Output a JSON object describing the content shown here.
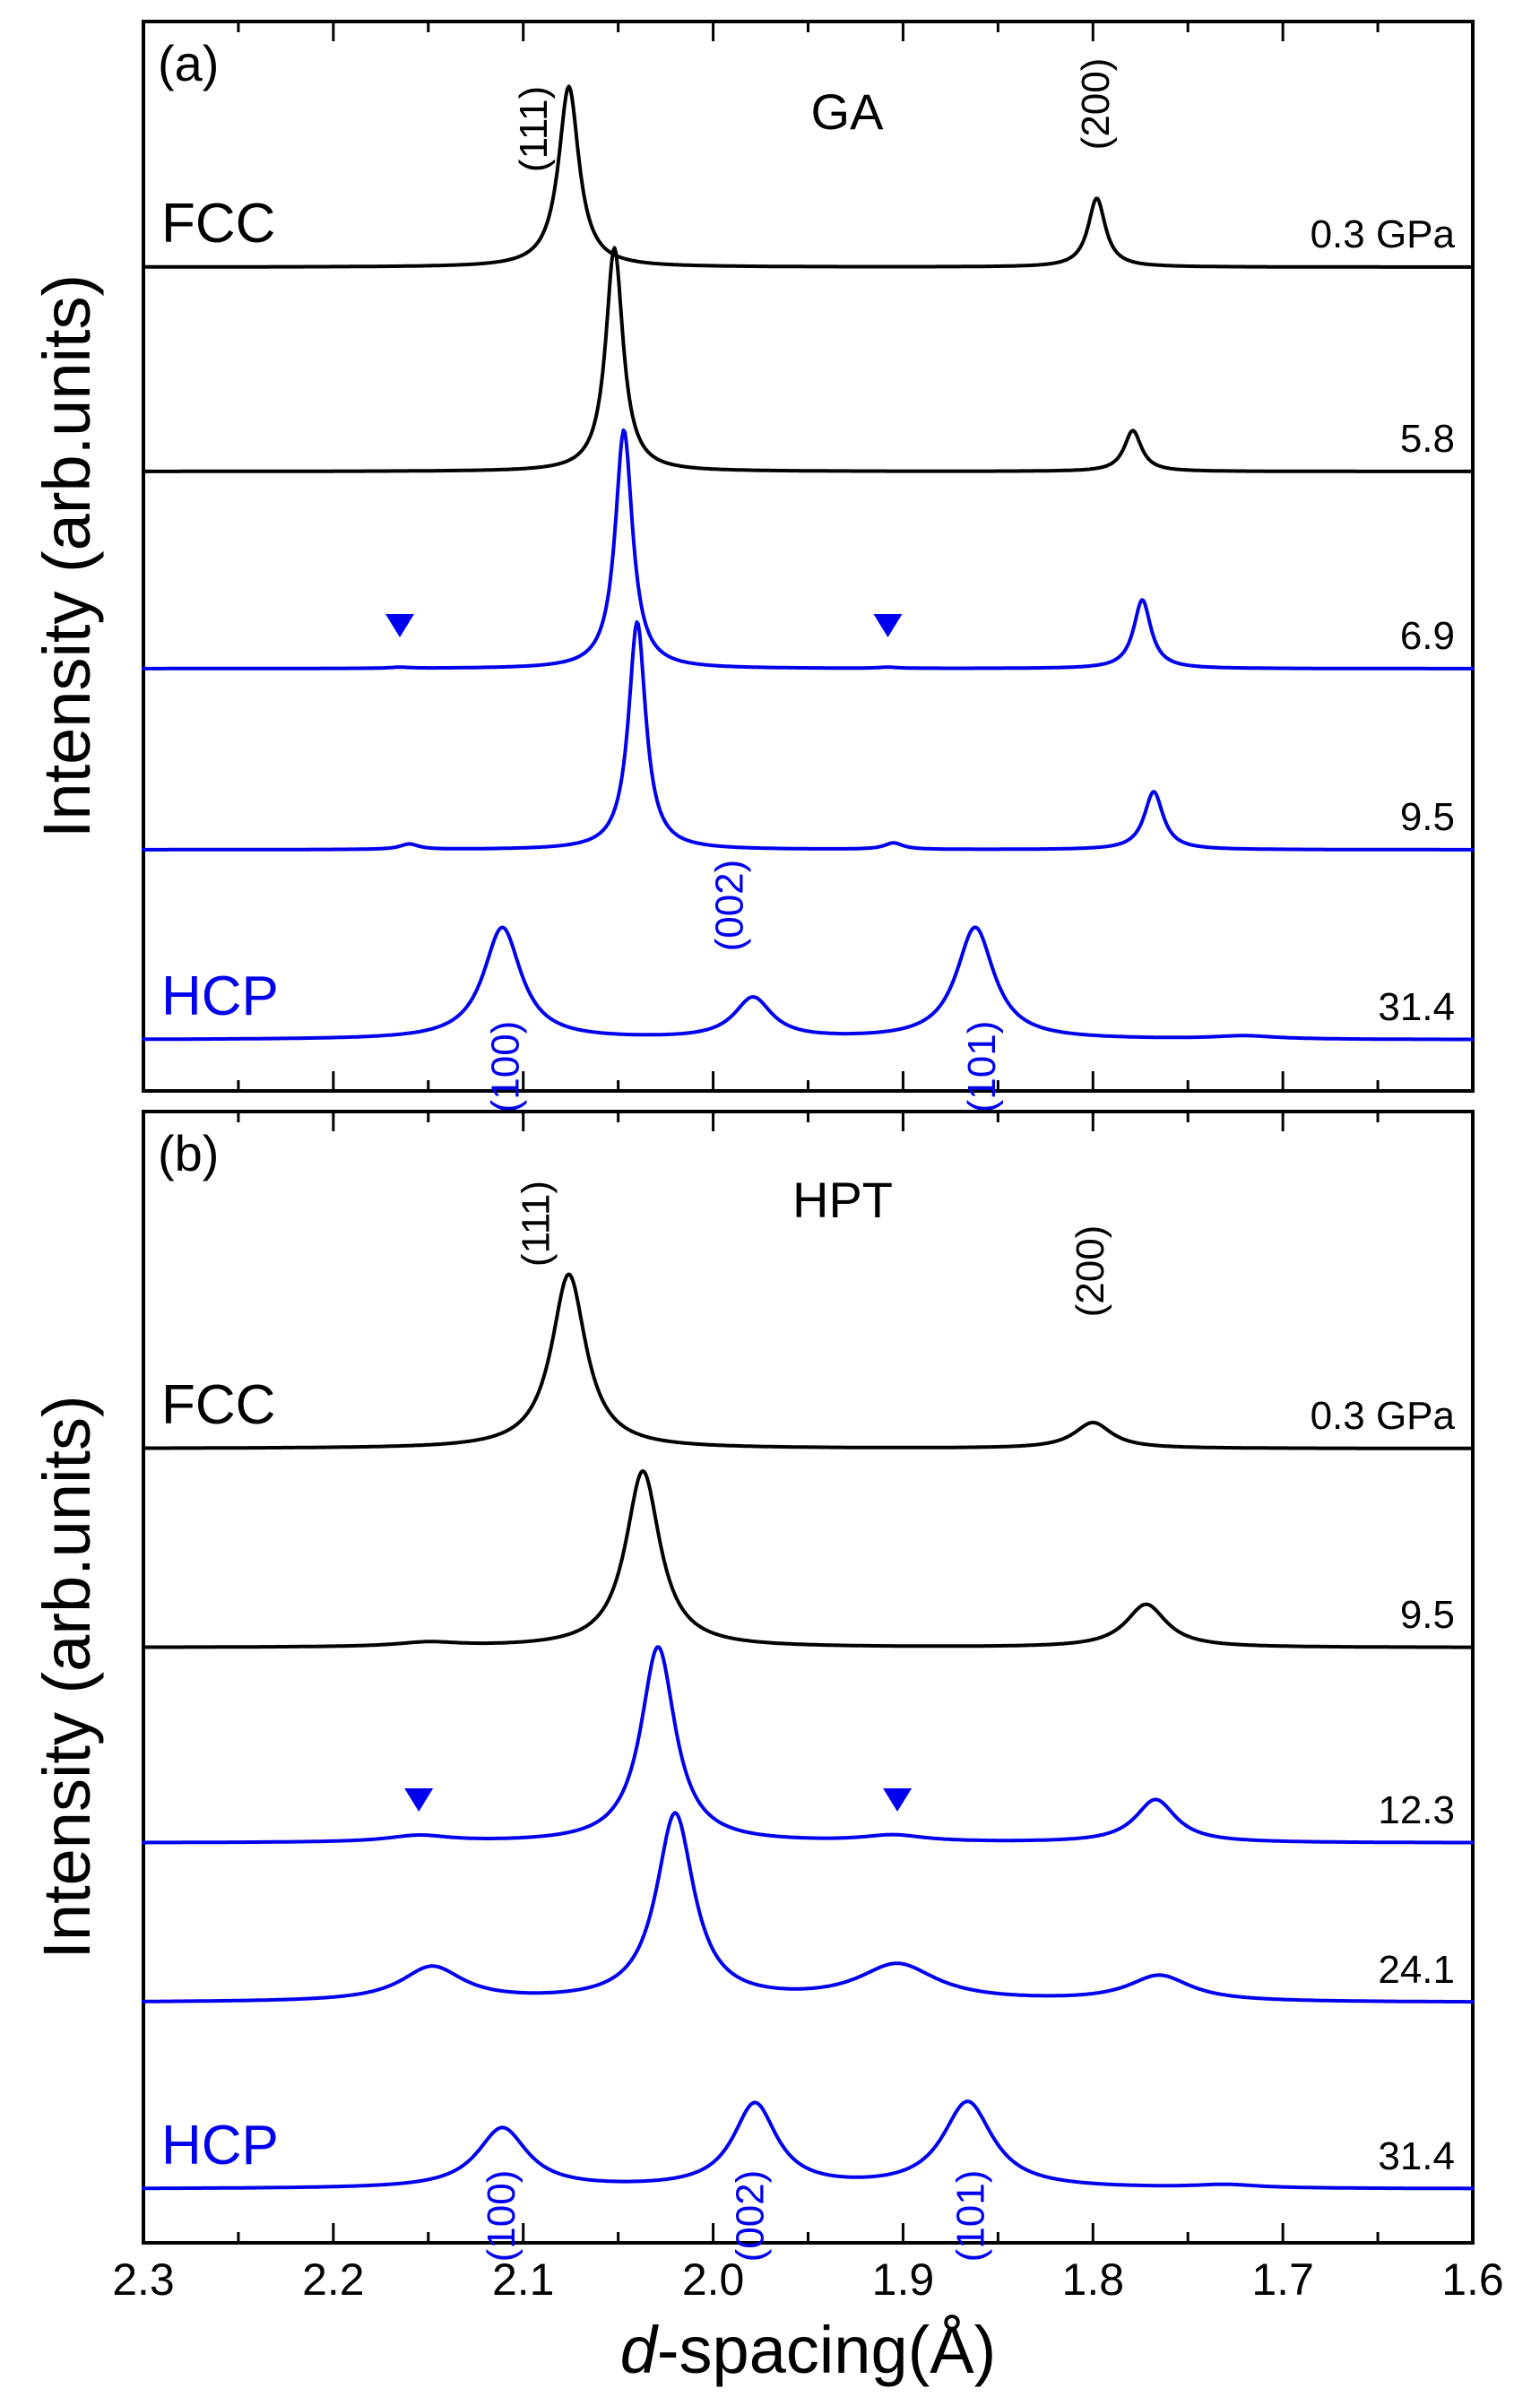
{
  "chart_data": [
    {
      "type": "line",
      "panel_label": "(a)",
      "sample": "GA",
      "xlabel_italic": "d",
      "xlabel_rest": "-spacing(Å)",
      "ylabel": "Intensity (arb.units)",
      "xlim": [
        2.3,
        1.6
      ],
      "x_ticks": [
        "2.3",
        "2.2",
        "2.1",
        "2.0",
        "1.9",
        "1.8",
        "1.7",
        "1.6"
      ],
      "phase_labels": [
        {
          "text": "FCC",
          "color": "#000000",
          "series": 0
        },
        {
          "text": "HCP",
          "color": "#0000ee",
          "series": 4
        }
      ],
      "peak_labels": [
        {
          "text": "(111)",
          "x": 2.093,
          "series": 0,
          "color": "#000000",
          "pos": "above"
        },
        {
          "text": "(200)",
          "x": 1.797,
          "series": 0,
          "color": "#000000",
          "pos": "above"
        },
        {
          "text": "(100)",
          "x": 2.108,
          "series": 4,
          "color": "#0000ee",
          "pos": "below"
        },
        {
          "text": "(002)",
          "x": 1.99,
          "series": 4,
          "color": "#0000ee",
          "pos": "above"
        },
        {
          "text": "(101)",
          "x": 1.857,
          "series": 4,
          "color": "#0000ee",
          "pos": "below"
        }
      ],
      "markers": [
        {
          "x": 2.165,
          "series": 2,
          "color": "#0000ee"
        },
        {
          "x": 1.908,
          "series": 2,
          "color": "#0000ee"
        }
      ],
      "series": [
        {
          "name": "0.3 GPa",
          "color": "#000000",
          "baseline": 0.0,
          "slope": 0.0,
          "peaks": [
            {
              "x": 2.076,
              "h": 8.4,
              "w": 0.0065
            },
            {
              "x": 1.798,
              "h": 3.2,
              "w": 0.0055
            }
          ]
        },
        {
          "name": "5.8",
          "color": "#000000",
          "baseline": 0.0,
          "slope": 0.0,
          "peaks": [
            {
              "x": 2.052,
              "h": 10.4,
              "w": 0.0055
            },
            {
              "x": 1.779,
              "h": 1.9,
              "w": 0.0055
            }
          ]
        },
        {
          "name": "6.9",
          "color": "#0000ee",
          "baseline": 0.0,
          "slope": 0.0,
          "peaks": [
            {
              "x": 2.047,
              "h": 11.1,
              "w": 0.0055
            },
            {
              "x": 1.774,
              "h": 3.2,
              "w": 0.0055
            },
            {
              "x": 2.165,
              "h": 0.05,
              "w": 0.006
            },
            {
              "x": 1.908,
              "h": 0.05,
              "w": 0.006
            }
          ]
        },
        {
          "name": "9.5",
          "color": "#0000ee",
          "baseline": 0.0,
          "slope": 0.0,
          "peaks": [
            {
              "x": 2.04,
              "h": 10.6,
              "w": 0.0055
            },
            {
              "x": 1.768,
              "h": 2.7,
              "w": 0.006
            },
            {
              "x": 2.16,
              "h": 0.25,
              "w": 0.006
            },
            {
              "x": 1.905,
              "h": 0.3,
              "w": 0.006
            }
          ]
        },
        {
          "name": "31.4",
          "color": "#0000ee",
          "baseline": 0.0,
          "slope": 0.0,
          "peaks": [
            {
              "x": 2.111,
              "h": 5.2,
              "w": 0.012
            },
            {
              "x": 1.979,
              "h": 1.9,
              "w": 0.012
            },
            {
              "x": 1.862,
              "h": 5.2,
              "w": 0.012
            },
            {
              "x": 1.72,
              "h": 0.15,
              "w": 0.02
            }
          ]
        }
      ]
    },
    {
      "type": "line",
      "panel_label": "(b)",
      "sample": "HPT",
      "xlabel_italic": "d",
      "xlabel_rest": "-spacing(Å)",
      "ylabel": "Intensity (arb.units)",
      "xlim": [
        2.3,
        1.6
      ],
      "x_ticks": [
        "2.3",
        "2.2",
        "2.1",
        "2.0",
        "1.9",
        "1.8",
        "1.7",
        "1.6"
      ],
      "phase_labels": [
        {
          "text": "FCC",
          "color": "#000000",
          "series": 0
        },
        {
          "text": "HCP",
          "color": "#0000ee",
          "series": 4
        }
      ],
      "peak_labels": [
        {
          "text": "(111)",
          "x": 2.092,
          "series": 0,
          "color": "#000000",
          "pos": "above"
        },
        {
          "text": "(200)",
          "x": 1.8,
          "series": 0,
          "color": "#000000",
          "pos": "above"
        },
        {
          "text": "(100)",
          "x": 2.11,
          "series": 4,
          "color": "#0000ee",
          "pos": "below"
        },
        {
          "text": "(002)",
          "x": 1.979,
          "series": 4,
          "color": "#0000ee",
          "pos": "below"
        },
        {
          "text": "(101)",
          "x": 1.863,
          "series": 4,
          "color": "#0000ee",
          "pos": "below"
        }
      ],
      "markers": [
        {
          "x": 2.155,
          "series": 2,
          "color": "#0000ee"
        },
        {
          "x": 1.903,
          "series": 2,
          "color": "#0000ee"
        }
      ],
      "series": [
        {
          "name": "0.3 GPa",
          "color": "#000000",
          "baseline": 0.0,
          "slope": 0.0,
          "peaks": [
            {
              "x": 2.076,
              "h": 8.1,
              "w": 0.011
            },
            {
              "x": 1.8,
              "h": 1.2,
              "w": 0.012
            }
          ]
        },
        {
          "name": "9.5",
          "color": "#000000",
          "baseline": 0.0,
          "slope": 0.0,
          "peaks": [
            {
              "x": 2.037,
              "h": 8.2,
              "w": 0.011
            },
            {
              "x": 1.772,
              "h": 2.0,
              "w": 0.013
            },
            {
              "x": 2.15,
              "h": 0.2,
              "w": 0.02
            }
          ]
        },
        {
          "name": "12.3",
          "color": "#0000ee",
          "baseline": 0.0,
          "slope": 0.0,
          "peaks": [
            {
              "x": 2.029,
              "h": 9.1,
              "w": 0.011
            },
            {
              "x": 1.767,
              "h": 2.0,
              "w": 0.013
            },
            {
              "x": 2.155,
              "h": 0.3,
              "w": 0.02
            },
            {
              "x": 1.905,
              "h": 0.3,
              "w": 0.02
            }
          ]
        },
        {
          "name": "24.1",
          "color": "#0000ee",
          "baseline": 0.0,
          "slope": 0.0,
          "peaks": [
            {
              "x": 2.02,
              "h": 8.7,
              "w": 0.012
            },
            {
              "x": 2.148,
              "h": 1.6,
              "w": 0.02
            },
            {
              "x": 1.903,
              "h": 1.7,
              "w": 0.025
            },
            {
              "x": 1.765,
              "h": 1.2,
              "w": 0.02
            }
          ]
        },
        {
          "name": "31.4",
          "color": "#0000ee",
          "baseline": 0.0,
          "slope": 0.0,
          "peaks": [
            {
              "x": 2.111,
              "h": 2.8,
              "w": 0.016
            },
            {
              "x": 1.978,
              "h": 3.9,
              "w": 0.014
            },
            {
              "x": 1.866,
              "h": 4.0,
              "w": 0.016
            },
            {
              "x": 1.73,
              "h": 0.15,
              "w": 0.02
            }
          ]
        }
      ]
    }
  ]
}
